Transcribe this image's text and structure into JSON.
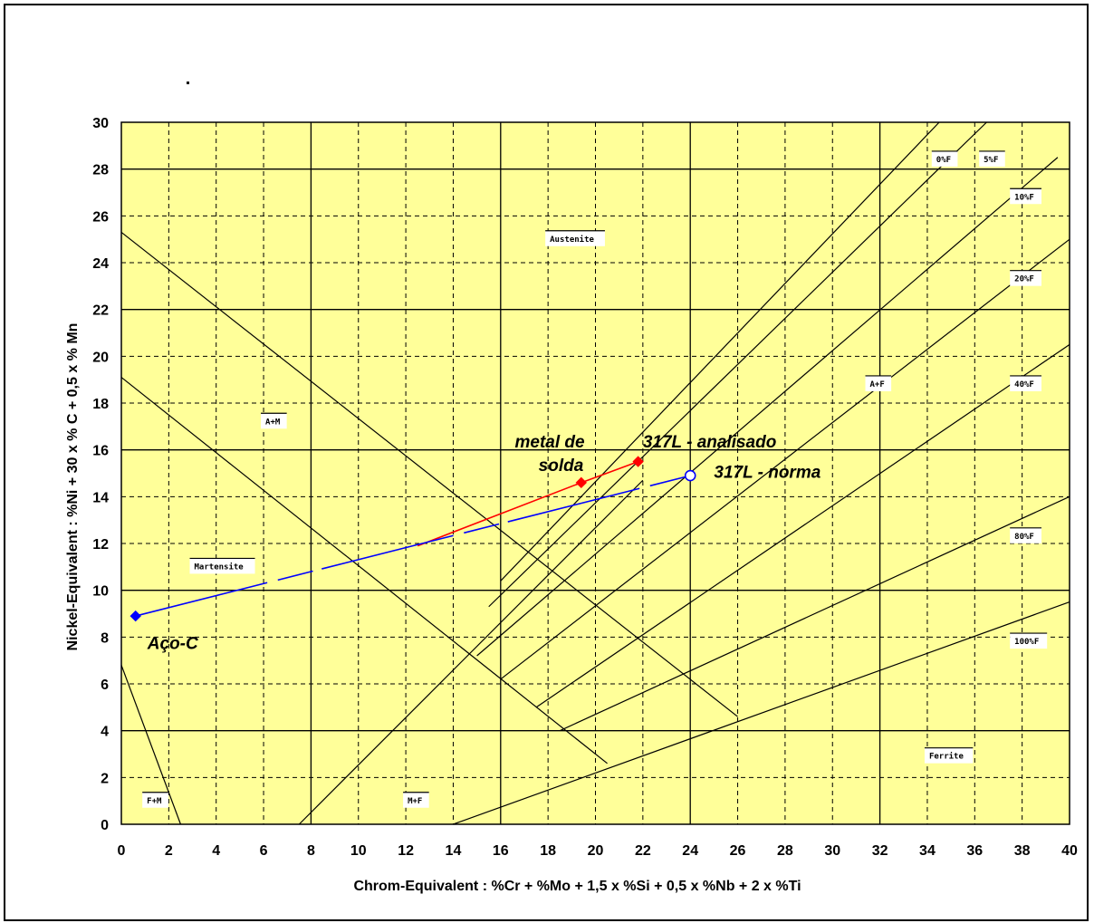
{
  "chart_data": {
    "type": "line",
    "xlabel": "Chrom-Equivalent : %Cr + %Mo + 1,5 x %Si + 0,5 x %Nb + 2 x %Ti",
    "ylabel": "Nickel-Equivalent : %Ni + 30 x % C + 0,5 x % Mn",
    "xlim": [
      0,
      40
    ],
    "ylim": [
      0,
      30
    ],
    "xticks": [
      0,
      2,
      4,
      6,
      8,
      10,
      12,
      14,
      16,
      18,
      20,
      22,
      24,
      26,
      28,
      30,
      32,
      34,
      36,
      38,
      40
    ],
    "yticks": [
      0,
      2,
      4,
      6,
      8,
      10,
      12,
      14,
      16,
      18,
      20,
      22,
      24,
      26,
      28,
      30
    ],
    "grid": true,
    "background_color": "#ffff99",
    "region_labels": [
      {
        "text": "Austenite",
        "x": 18,
        "y": 24.9
      },
      {
        "text": "A+M",
        "x": 6,
        "y": 17.1
      },
      {
        "text": "A+F",
        "x": 31.5,
        "y": 18.7
      },
      {
        "text": "Martensite",
        "x": 3,
        "y": 10.9
      },
      {
        "text": "Ferrite",
        "x": 34,
        "y": 2.8
      },
      {
        "text": "F+M",
        "x": 1,
        "y": 0.9
      },
      {
        "text": "M+F",
        "x": 12,
        "y": 0.9
      }
    ],
    "ferrite_lines": [
      {
        "label": "0%F",
        "points": [
          [
            16,
            10.4
          ],
          [
            34.5,
            30
          ]
        ]
      },
      {
        "label": "5%F",
        "points": [
          [
            15.5,
            9.3
          ],
          [
            36.5,
            30
          ]
        ]
      },
      {
        "label": "10%F",
        "points": [
          [
            15,
            7.2
          ],
          [
            39.5,
            28.5
          ]
        ]
      },
      {
        "label": "20%F",
        "points": [
          [
            16,
            6.2
          ],
          [
            40,
            25
          ]
        ]
      },
      {
        "label": "40%F",
        "points": [
          [
            17.5,
            5
          ],
          [
            40,
            20.5
          ]
        ]
      },
      {
        "label": "80%F",
        "points": [
          [
            18.5,
            4
          ],
          [
            40,
            14
          ]
        ]
      },
      {
        "label": "100%F",
        "points": [
          [
            14,
            0
          ],
          [
            40,
            9.5
          ]
        ]
      }
    ],
    "boundaries": [
      {
        "name": "A+M / Austenite",
        "points": [
          [
            0,
            25.3
          ],
          [
            26,
            4.6
          ]
        ]
      },
      {
        "name": "Martensite / A+M",
        "points": [
          [
            0,
            19.1
          ],
          [
            20.5,
            2.6
          ]
        ]
      },
      {
        "name": "F+M boundary",
        "points": [
          [
            0,
            6.8
          ],
          [
            2.5,
            0
          ]
        ]
      },
      {
        "name": "M+F boundary",
        "points": [
          [
            7.5,
            0
          ],
          [
            22,
            14.7
          ]
        ]
      }
    ],
    "series": [
      {
        "name": "metal de solda - 317L analisado",
        "color": "#ff0000",
        "style": "solid",
        "x": [
          12.5,
          19.4,
          21.8
        ],
        "y": [
          11.9,
          14.6,
          15.5
        ]
      },
      {
        "name": "Aço-C - 317L norma",
        "color": "#0000ff",
        "style": "dashed",
        "x": [
          0.6,
          24
        ],
        "y": [
          8.9,
          14.9
        ]
      }
    ],
    "points": [
      {
        "label": "Aço-C",
        "x": 0.6,
        "y": 8.9,
        "color": "#0000ff",
        "marker": "diamond"
      },
      {
        "label": "metal de solda",
        "x": 19.4,
        "y": 14.6,
        "color": "#ff0000",
        "marker": "diamond"
      },
      {
        "label": "317L - analisado",
        "x": 21.8,
        "y": 15.5,
        "color": "#ff0000",
        "marker": "diamond"
      },
      {
        "label": "317L - norma",
        "x": 24,
        "y": 14.9,
        "color": "#0000ff",
        "marker": "circle-open"
      }
    ],
    "annotations": [
      {
        "text": "metal de",
        "x": 16.6,
        "y": 16.1
      },
      {
        "text": "solda",
        "x": 17.6,
        "y": 15.1
      },
      {
        "text": "317L - analisado",
        "x": 22,
        "y": 16.1
      },
      {
        "text": "317L - norma",
        "x": 25,
        "y": 14.8
      },
      {
        "text": "Aço-C",
        "x": 1.1,
        "y": 7.5
      }
    ]
  }
}
